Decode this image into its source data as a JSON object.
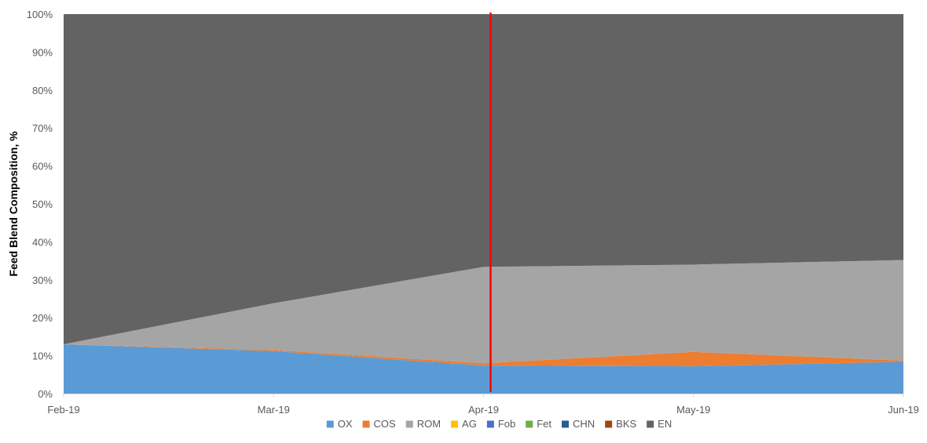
{
  "chart_data": {
    "type": "area",
    "stacked": true,
    "percent": true,
    "title": "",
    "xlabel": "",
    "ylabel": "Feed Blend Composition, %",
    "ylim": [
      0,
      100
    ],
    "yticks": [
      "0%",
      "10%",
      "20%",
      "30%",
      "40%",
      "50%",
      "60%",
      "70%",
      "80%",
      "90%",
      "100%"
    ],
    "categories": [
      "Feb-19",
      "Mar-19",
      "Apr-19",
      "May-19",
      "Jun-19"
    ],
    "series": [
      {
        "name": "OX",
        "color": "#5b9bd5",
        "values": [
          13.0,
          11.2,
          7.4,
          7.2,
          8.4
        ]
      },
      {
        "name": "COS",
        "color": "#ed7d31",
        "values": [
          0.0,
          0.3,
          0.6,
          3.8,
          0.3
        ]
      },
      {
        "name": "ROM",
        "color": "#a5a5a5",
        "values": [
          0.0,
          12.3,
          25.4,
          23.0,
          26.5
        ]
      },
      {
        "name": "AG",
        "color": "#ffc000",
        "values": [
          0,
          0,
          0,
          0,
          0
        ]
      },
      {
        "name": "Fob",
        "color": "#4472c4",
        "values": [
          0,
          0,
          0,
          0,
          0
        ]
      },
      {
        "name": "Fet",
        "color": "#70ad47",
        "values": [
          0,
          0,
          0,
          0,
          0
        ]
      },
      {
        "name": "CHN",
        "color": "#255e91",
        "values": [
          0,
          0,
          0,
          0,
          0
        ]
      },
      {
        "name": "BKS",
        "color": "#9e480e",
        "values": [
          0,
          0,
          0,
          0,
          0
        ]
      },
      {
        "name": "EN",
        "color": "#636363",
        "values": [
          87.0,
          76.2,
          66.6,
          66.0,
          64.8
        ]
      }
    ],
    "reference_line": {
      "x": "Apr-19",
      "color": "#ff0000"
    },
    "legend": "bottom",
    "grid": false
  }
}
